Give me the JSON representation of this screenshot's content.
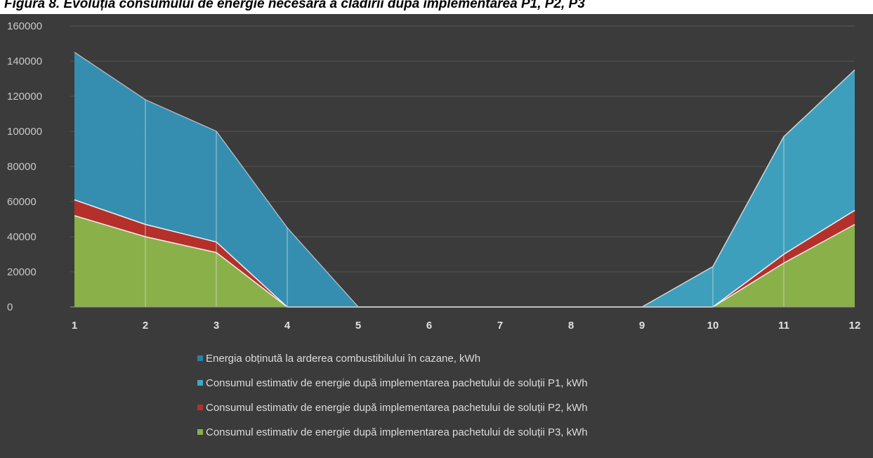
{
  "caption": "Figura 8. Evoluția consumului de energie necesară a clădirii după implementarea P1, P2, P3",
  "chart_data": {
    "type": "area",
    "title": "",
    "xlabel": "",
    "ylabel": "",
    "categories": [
      "1",
      "2",
      "3",
      "4",
      "5",
      "6",
      "7",
      "8",
      "9",
      "10",
      "11",
      "12"
    ],
    "ylim": [
      0,
      160000
    ],
    "yticks": [
      "0",
      "20000",
      "40000",
      "60000",
      "80000",
      "100000",
      "120000",
      "140000",
      "160000"
    ],
    "grid": true,
    "legend_position": "bottom",
    "series": [
      {
        "name": "Energia obținută la arderea combustibilului în cazane, kWh",
        "color": "#2e7fa6",
        "values": [
          145000,
          118000,
          100000,
          45000,
          0,
          0,
          0,
          0,
          0,
          23000,
          97000,
          135000
        ]
      },
      {
        "name": "Consumul estimativ de energie după implementarea pachetului de soluții P1, kWh",
        "color": "#3fa8c8",
        "values": [
          145000,
          118000,
          100000,
          45000,
          0,
          0,
          0,
          0,
          0,
          23000,
          97000,
          135000
        ]
      },
      {
        "name": "Consumul estimativ de energie după implementarea pachetului de soluții P2, kWh",
        "color": "#b5302b",
        "values": [
          61000,
          47000,
          37000,
          0,
          0,
          0,
          0,
          0,
          0,
          0,
          30000,
          55000
        ]
      },
      {
        "name": "Consumul estimativ de energie după implementarea pachetului de soluții P3, kWh",
        "color": "#8ab04a",
        "values": [
          52000,
          40000,
          31000,
          0,
          0,
          0,
          0,
          0,
          0,
          0,
          25000,
          47000
        ]
      }
    ]
  }
}
